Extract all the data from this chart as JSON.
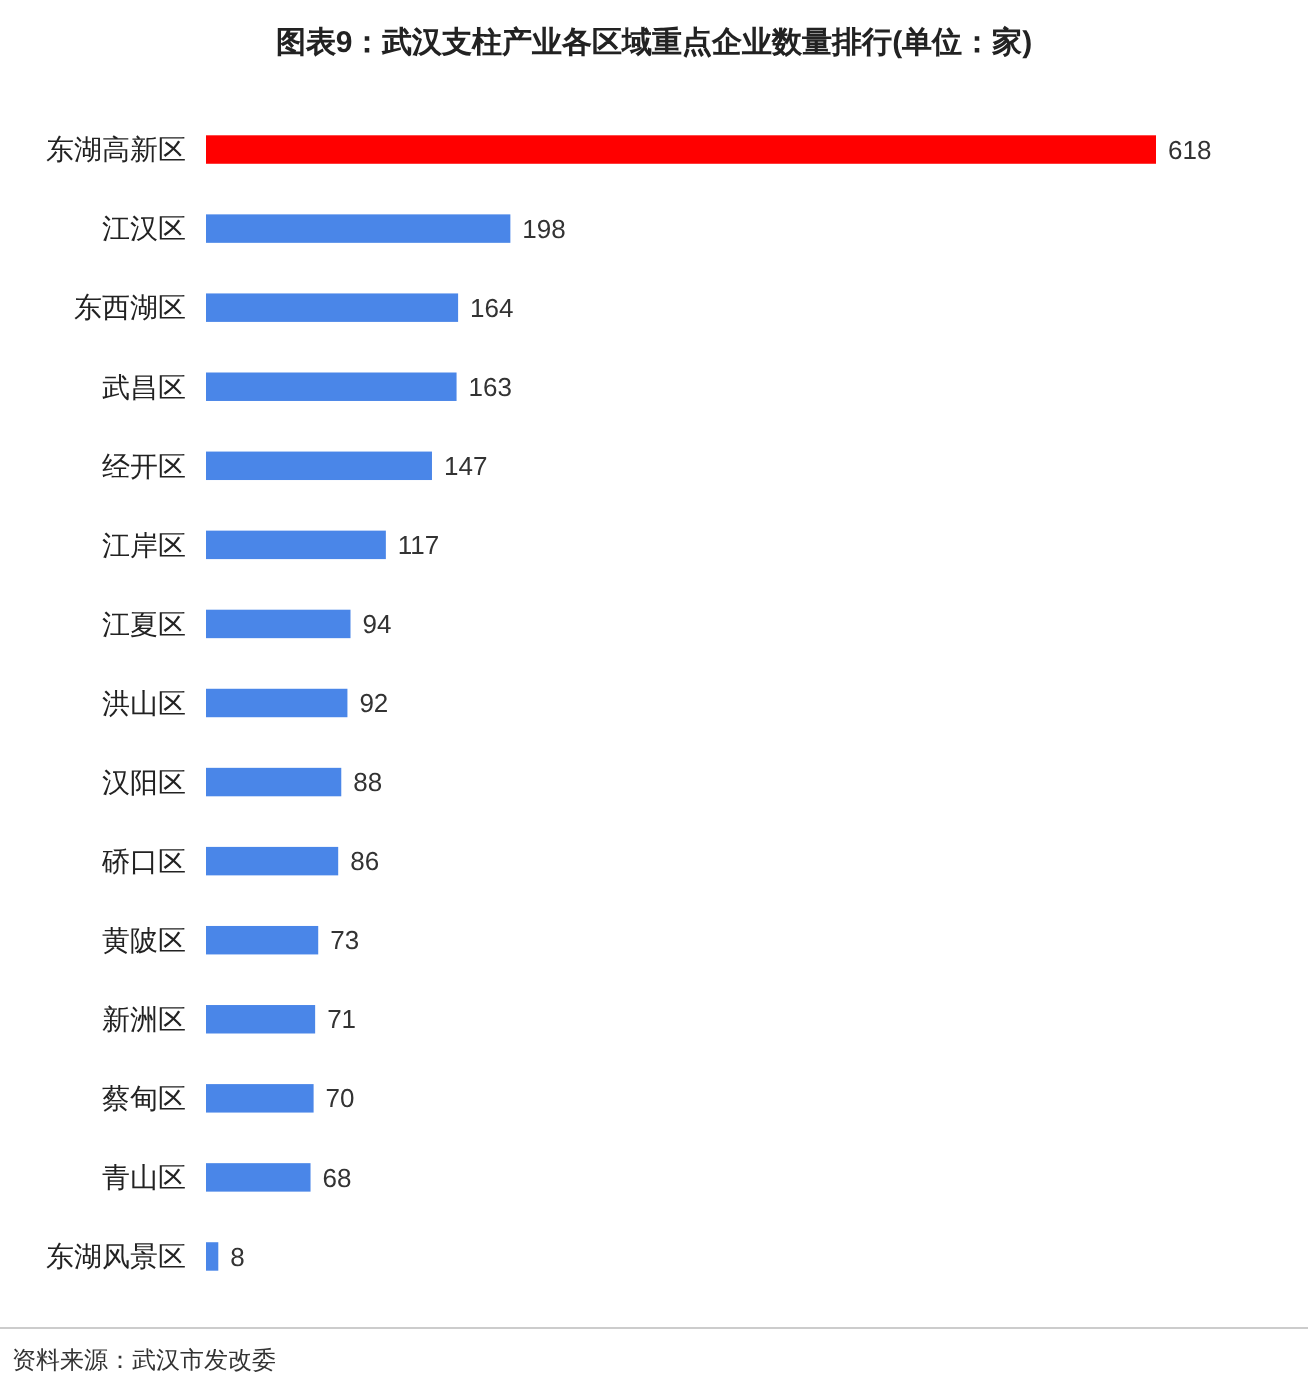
{
  "chart_data": {
    "type": "bar",
    "orientation": "horizontal",
    "title": "图表9：武汉支柱产业各区域重点企业数量排行(单位：家)",
    "categories": [
      "东湖高新区",
      "江汉区",
      "东西湖区",
      "武昌区",
      "经开区",
      "江岸区",
      "江夏区",
      "洪山区",
      "汉阳区",
      "硚口区",
      "黄陂区",
      "新洲区",
      "蔡甸区",
      "青山区",
      "东湖风景区"
    ],
    "values": [
      618,
      198,
      164,
      163,
      147,
      117,
      94,
      92,
      88,
      86,
      73,
      71,
      70,
      68,
      8
    ],
    "colors": [
      "#ff0000",
      "#4a86e8",
      "#4a86e8",
      "#4a86e8",
      "#4a86e8",
      "#4a86e8",
      "#4a86e8",
      "#4a86e8",
      "#4a86e8",
      "#4a86e8",
      "#4a86e8",
      "#4a86e8",
      "#4a86e8",
      "#4a86e8",
      "#4a86e8"
    ],
    "data_labels": true,
    "annotations": [
      "资料来源：武汉市发改委"
    ]
  }
}
